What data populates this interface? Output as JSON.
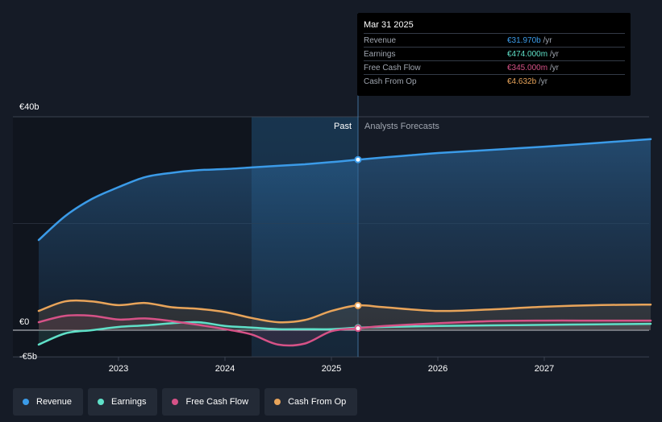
{
  "tooltip": {
    "date": "Mar 31 2025",
    "rows": [
      {
        "label": "Revenue",
        "value": "€31.970b",
        "unit": "/yr",
        "color": "#3b9be8"
      },
      {
        "label": "Earnings",
        "value": "€474.000m",
        "unit": "/yr",
        "color": "#5fe0c8"
      },
      {
        "label": "Free Cash Flow",
        "value": "€345.000m",
        "unit": "/yr",
        "color": "#d65287"
      },
      {
        "label": "Cash From Op",
        "value": "€4.632b",
        "unit": "/yr",
        "color": "#e8a45a"
      }
    ]
  },
  "legend": [
    {
      "label": "Revenue",
      "color": "#3b9be8"
    },
    {
      "label": "Earnings",
      "color": "#5fe0c8"
    },
    {
      "label": "Free Cash Flow",
      "color": "#d65287"
    },
    {
      "label": "Cash From Op",
      "color": "#e8a45a"
    }
  ],
  "chart_data": {
    "type": "area",
    "y_unit": "€b",
    "ylim": [
      -5,
      40
    ],
    "xlim": [
      2022.2,
      2028.0
    ],
    "y_tick_labels": [
      {
        "value": 40,
        "label": "€40b"
      },
      {
        "value": 0,
        "label": "€0"
      },
      {
        "value": -5,
        "label": "-€5b"
      }
    ],
    "x_ticks": [
      {
        "value": 2023.0,
        "label": "2023"
      },
      {
        "value": 2024.0,
        "label": "2024"
      },
      {
        "value": 2025.0,
        "label": "2025"
      },
      {
        "value": 2026.0,
        "label": "2026"
      },
      {
        "value": 2027.0,
        "label": "2027"
      }
    ],
    "divider_x": 2025.25,
    "shade_start_x": 2024.25,
    "past_label": "Past",
    "forecast_label": "Analysts Forecasts",
    "series": [
      {
        "name": "Revenue",
        "color": "#3b9be8",
        "x": [
          2022.25,
          2022.5,
          2022.75,
          2023.0,
          2023.25,
          2023.5,
          2023.75,
          2024.0,
          2024.25,
          2024.5,
          2024.75,
          2025.0,
          2025.25,
          2025.5,
          2025.75,
          2026.0,
          2026.5,
          2027.0,
          2027.5,
          2028.0
        ],
        "y": [
          16.9,
          21.4,
          24.6,
          26.8,
          28.7,
          29.5,
          30.0,
          30.2,
          30.5,
          30.8,
          31.1,
          31.5,
          31.97,
          32.4,
          32.8,
          33.2,
          33.8,
          34.4,
          35.1,
          35.8
        ]
      },
      {
        "name": "Earnings",
        "color": "#5fe0c8",
        "x": [
          2022.25,
          2022.5,
          2022.75,
          2023.0,
          2023.25,
          2023.5,
          2023.75,
          2024.0,
          2024.25,
          2024.5,
          2024.75,
          2025.0,
          2025.25,
          2025.5,
          2026.0,
          2026.5,
          2027.0,
          2027.5,
          2028.0
        ],
        "y": [
          -2.7,
          -0.6,
          0.0,
          0.6,
          0.9,
          1.3,
          1.5,
          0.8,
          0.5,
          0.2,
          0.2,
          0.2,
          0.47,
          0.6,
          0.8,
          0.9,
          1.0,
          1.1,
          1.2
        ]
      },
      {
        "name": "Free Cash Flow",
        "color": "#d65287",
        "x": [
          2022.25,
          2022.5,
          2022.75,
          2023.0,
          2023.25,
          2023.5,
          2023.75,
          2024.0,
          2024.25,
          2024.5,
          2024.75,
          2025.0,
          2025.25,
          2025.5,
          2026.0,
          2026.5,
          2027.0,
          2027.5,
          2028.0
        ],
        "y": [
          1.5,
          2.7,
          2.7,
          2.0,
          2.2,
          1.7,
          1.0,
          0.2,
          -0.8,
          -2.7,
          -2.5,
          -0.2,
          0.35,
          0.8,
          1.3,
          1.7,
          1.8,
          1.8,
          1.8
        ]
      },
      {
        "name": "Cash From Op",
        "color": "#e8a45a",
        "x": [
          2022.25,
          2022.5,
          2022.75,
          2023.0,
          2023.25,
          2023.5,
          2023.75,
          2024.0,
          2024.25,
          2024.5,
          2024.75,
          2025.0,
          2025.25,
          2025.5,
          2026.0,
          2026.5,
          2027.0,
          2027.5,
          2028.0
        ],
        "y": [
          3.6,
          5.4,
          5.4,
          4.7,
          5.1,
          4.3,
          4.0,
          3.4,
          2.3,
          1.5,
          1.9,
          3.6,
          4.632,
          4.3,
          3.6,
          3.9,
          4.4,
          4.7,
          4.8
        ]
      }
    ]
  }
}
